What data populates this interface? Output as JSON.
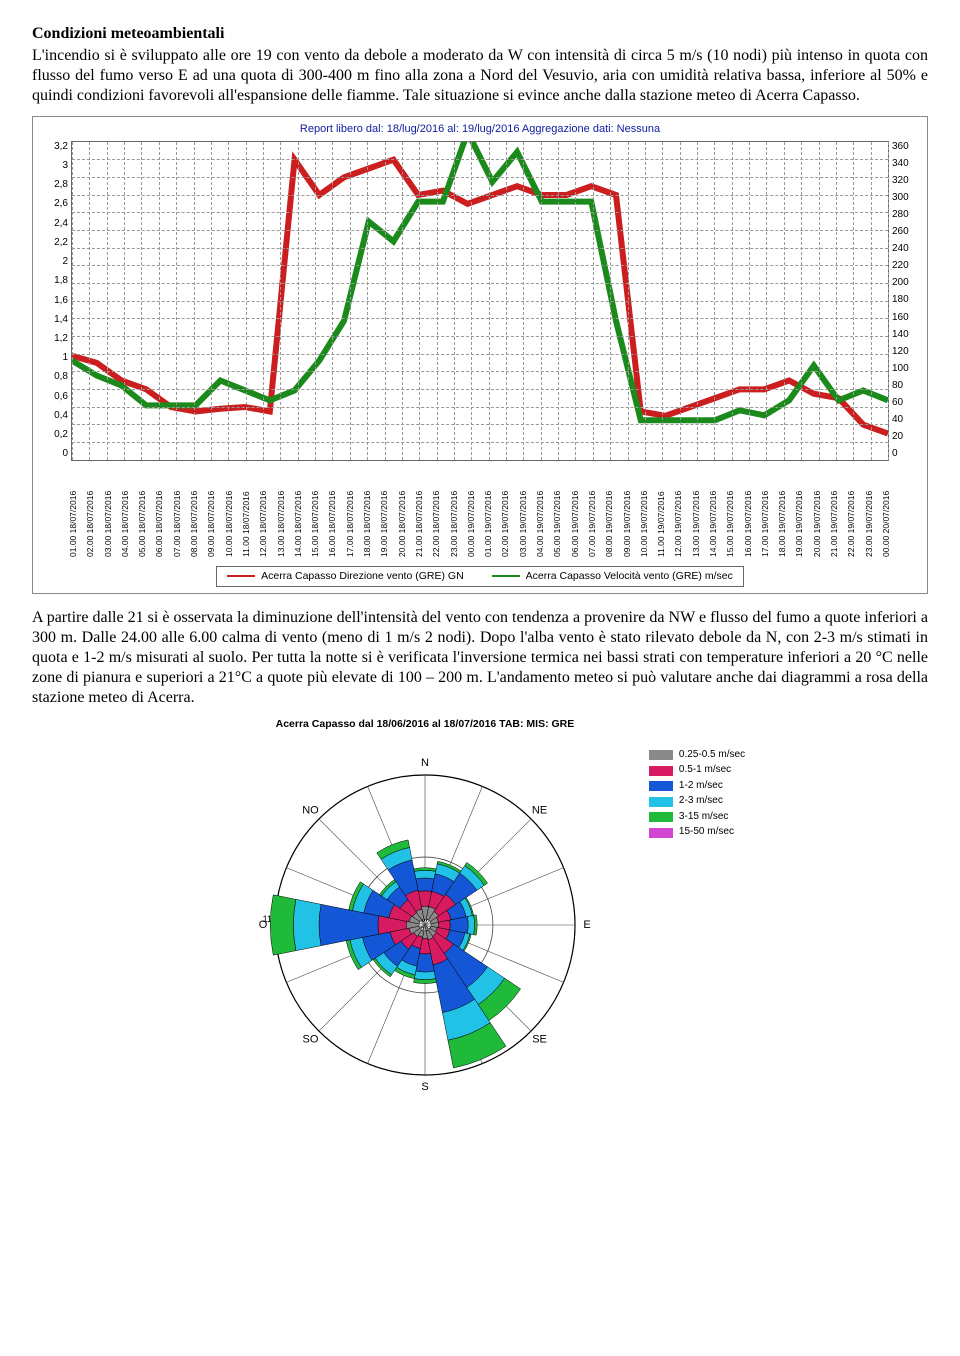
{
  "section_title": "Condizioni meteoambientali",
  "para1": "L'incendio si è sviluppato alle ore 19 con vento da debole a moderato da W con intensità di circa 5 m/s  (10 nodi) più intenso in quota con flusso del fumo verso E ad una quota di 300-400 m fino alla zona a Nord del Vesuvio, aria con umidità relativa bassa, inferiore al 50% e quindi condizioni favorevoli all'espansione delle fiamme. Tale situazione si evince anche dalla stazione meteo di Acerra Capasso.",
  "para2": "A partire dalle 21 si è osservata la diminuzione dell'intensità del vento con tendenza a provenire da NW e flusso del fumo a quote inferiori a 300 m. Dalle 24.00 alle 6.00 calma di vento (meno di 1 m/s 2 nodi). Dopo l'alba vento è stato rilevato debole da N, con 2-3 m/s stimati in quota e 1-2 m/s misurati al suolo. Per tutta la notte si è verificata l'inversione termica nei bassi strati con temperature inferiori a 20 °C nelle zone di pianura e superiori a 21°C a quote più elevate di  100 – 200 m. L'andamento meteo si può valutare anche dai diagrammi a rosa della stazione meteo di Acerra.",
  "line_chart": {
    "type": "line",
    "title": "Report libero dal: 18/lug/2016 al: 19/lug/2016 Aggregazione dati: Nessuna",
    "title_color": "#1020a0",
    "left_axis": {
      "min": 0,
      "max": 3.2,
      "step": 0.2
    },
    "right_axis": {
      "min": 0,
      "max": 360,
      "step": 20
    },
    "grid_color": "#999999",
    "background": "#ffffff",
    "x_labels": [
      "01.00 18/07/2016",
      "02.00 18/07/2016",
      "03.00 18/07/2016",
      "04.00 18/07/2016",
      "05.00 18/07/2016",
      "06.00 18/07/2016",
      "07.00 18/07/2016",
      "08.00 18/07/2016",
      "09.00 18/07/2016",
      "10.00 18/07/2016",
      "11.00 18/07/2016",
      "12.00 18/07/2016",
      "13.00 18/07/2016",
      "14.00 18/07/2016",
      "15.00 18/07/2016",
      "16.00 18/07/2016",
      "17.00 18/07/2016",
      "18.00 18/07/2016",
      "19.00 18/07/2016",
      "20.00 18/07/2016",
      "21.00 18/07/2016",
      "22.00 18/07/2016",
      "23.00 18/07/2016",
      "00.00 19/07/2016",
      "01.00 19/07/2016",
      "02.00 19/07/2016",
      "03.00 19/07/2016",
      "04.00 19/07/2016",
      "05.00 19/07/2016",
      "06.00 19/07/2016",
      "07.00 19/07/2016",
      "08.00 19/07/2016",
      "09.00 19/07/2016",
      "10.00 19/07/2016",
      "11.00 19/07/2016",
      "12.00 19/07/2016",
      "13.00 19/07/2016",
      "14.00 19/07/2016",
      "15.00 19/07/2016",
      "16.00 19/07/2016",
      "17.00 19/07/2016",
      "18.00 19/07/2016",
      "19.00 19/07/2016",
      "20.00 19/07/2016",
      "21.00 19/07/2016",
      "22.00 19/07/2016",
      "23.00 19/07/2016",
      "00.00 20/07/2016"
    ],
    "series": [
      {
        "name": "Acerra Capasso Direzione vento (GRE) GN",
        "axis": "right",
        "color": "#cc1e1e",
        "values": [
          118,
          110,
          90,
          80,
          60,
          55,
          58,
          60,
          55,
          340,
          300,
          320,
          330,
          340,
          300,
          305,
          290,
          300,
          310,
          300,
          300,
          310,
          300,
          55,
          50,
          60,
          70,
          80,
          80,
          90,
          75,
          70,
          40,
          30
        ]
      },
      {
        "name": "Acerra Capasso Velocità vento (GRE) m/sec",
        "axis": "left",
        "color": "#1a8a1a",
        "values": [
          1.0,
          0.85,
          0.75,
          0.55,
          0.55,
          0.55,
          0.8,
          0.7,
          0.6,
          0.7,
          1.0,
          1.4,
          2.4,
          2.2,
          2.6,
          2.6,
          3.3,
          2.8,
          3.1,
          2.6,
          2.6,
          2.6,
          1.4,
          0.4,
          0.4,
          0.4,
          0.4,
          0.5,
          0.45,
          0.6,
          0.95,
          0.6,
          0.7,
          0.6
        ]
      }
    ]
  },
  "wind_rose": {
    "type": "wind-rose",
    "title": "Acerra Capasso dal 18/06/2016 al 18/07/2016 TAB:   MIS: GRE",
    "calm_label": "Calma",
    "calm_pct": ".2%",
    "cardinal": [
      "N",
      "NE",
      "E",
      "SE",
      "S",
      "SO",
      "O",
      "NO"
    ],
    "ring_labels": [
      "11.7%",
      "5.3%",
      "2.3%",
      "0.8%"
    ],
    "legend": [
      {
        "label": "0.25-0.5 m/sec",
        "color": "#8a8a8a"
      },
      {
        "label": "0.5-1 m/sec",
        "color": "#d81b60"
      },
      {
        "label": "1-2 m/sec",
        "color": "#1457d6"
      },
      {
        "label": "2-3 m/sec",
        "color": "#22c2e6"
      },
      {
        "label": "3-15 m/sec",
        "color": "#1fba3a"
      },
      {
        "label": "15-50 m/sec",
        "color": "#d146d1"
      }
    ],
    "sectors": [
      {
        "dir": 0,
        "bins": [
          1.0,
          1.2,
          1.0,
          0.6,
          0.2
        ]
      },
      {
        "dir": 22.5,
        "bins": [
          1.0,
          1.2,
          1.4,
          0.8,
          0.2
        ]
      },
      {
        "dir": 45,
        "bins": [
          0.8,
          1.6,
          2.0,
          0.7,
          0.3
        ]
      },
      {
        "dir": 67.5,
        "bins": [
          0.6,
          1.0,
          1.2,
          0.5,
          0.1
        ]
      },
      {
        "dir": 90,
        "bins": [
          0.6,
          0.9,
          1.4,
          0.5,
          0.2
        ]
      },
      {
        "dir": 112.5,
        "bins": [
          0.5,
          1.0,
          1.2,
          0.4,
          0.1
        ]
      },
      {
        "dir": 135,
        "bins": [
          0.6,
          1.6,
          3.2,
          1.6,
          1.5
        ]
      },
      {
        "dir": 157.5,
        "bins": [
          0.7,
          2.0,
          3.8,
          2.2,
          2.2
        ]
      },
      {
        "dir": 180,
        "bins": [
          0.6,
          1.2,
          1.4,
          0.6,
          0.3
        ]
      },
      {
        "dir": 202.5,
        "bins": [
          0.5,
          0.9,
          1.4,
          0.7,
          0.3
        ]
      },
      {
        "dir": 225,
        "bins": [
          0.6,
          1.2,
          1.6,
          0.8,
          0.2
        ]
      },
      {
        "dir": 247.5,
        "bins": [
          0.8,
          1.5,
          2.2,
          1.0,
          0.3
        ]
      },
      {
        "dir": 270,
        "bins": [
          1.0,
          2.2,
          4.6,
          2.0,
          1.8
        ]
      },
      {
        "dir": 292.5,
        "bins": [
          0.8,
          1.6,
          2.0,
          0.9,
          0.3
        ]
      },
      {
        "dir": 315,
        "bins": [
          0.7,
          1.2,
          1.2,
          0.5,
          0.2
        ]
      },
      {
        "dir": 337.5,
        "bins": [
          0.8,
          1.5,
          2.4,
          1.0,
          0.6
        ]
      }
    ],
    "max_radius_pct": 11.7
  }
}
